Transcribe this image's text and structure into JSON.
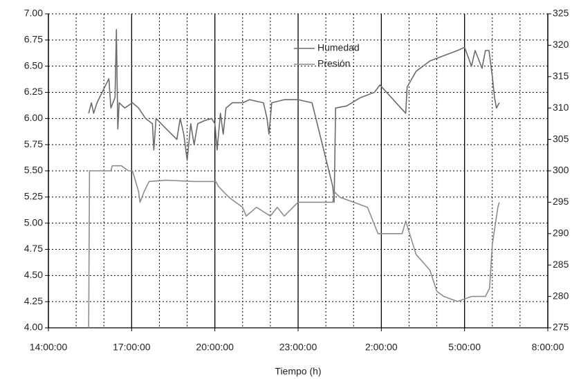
{
  "chart_data": {
    "type": "line",
    "xlabel": "Tiempo (h)",
    "xlim": [
      14,
      32
    ],
    "xticks": [
      {
        "value": 14,
        "label": "14:00:00"
      },
      {
        "value": 17,
        "label": "17:00:00"
      },
      {
        "value": 20,
        "label": "20:00:00"
      },
      {
        "value": 23,
        "label": "23:00:00"
      },
      {
        "value": 26,
        "label": "2:00:00"
      },
      {
        "value": 29,
        "label": "5:00:00"
      },
      {
        "value": 32,
        "label": "8:00:00"
      }
    ],
    "xminorticks": [
      15,
      16,
      18,
      19,
      21,
      22,
      24,
      25,
      27,
      28,
      30,
      31
    ],
    "ylim": [
      4,
      7
    ],
    "yticks": [
      {
        "value": 4,
        "label": "4.00"
      },
      {
        "value": 4.25,
        "label": "4.25"
      },
      {
        "value": 4.5,
        "label": "4.50"
      },
      {
        "value": 4.75,
        "label": "4.75"
      },
      {
        "value": 5,
        "label": "5.00"
      },
      {
        "value": 5.25,
        "label": "5.25"
      },
      {
        "value": 5.5,
        "label": "5.50"
      },
      {
        "value": 5.75,
        "label": "5.75"
      },
      {
        "value": 6,
        "label": "6.00"
      },
      {
        "value": 6.25,
        "label": "6.25"
      },
      {
        "value": 6.5,
        "label": "6.50"
      },
      {
        "value": 6.75,
        "label": "6.75"
      },
      {
        "value": 7,
        "label": "7.00"
      }
    ],
    "y2lim": [
      275,
      325
    ],
    "y2ticks": [
      275,
      280,
      285,
      290,
      295,
      300,
      305,
      310,
      315,
      320,
      325
    ],
    "grid": true,
    "legend": "top",
    "series": [
      {
        "name": "Humedad",
        "color": "#6a6a6a",
        "x": [
          15.45,
          15.55,
          15.63,
          15.75,
          16.18,
          16.25,
          16.4,
          16.45,
          16.5,
          16.55,
          16.75,
          17.03,
          17.25,
          17.5,
          17.75,
          17.8,
          17.88,
          18.25,
          18.63,
          18.75,
          18.88,
          19,
          19.13,
          19.25,
          19.38,
          19.63,
          19.88,
          20,
          20.08,
          20.2,
          20.3,
          20.4,
          20.63,
          21,
          21.25,
          21.75,
          21.88,
          21.95,
          22.05,
          22.5,
          23,
          23.5,
          24.25,
          24.3,
          24.35,
          24.75,
          25.25,
          25.75,
          25.95,
          26.88,
          26.93,
          27.25,
          27.75,
          28.25,
          28.75,
          29,
          29.25,
          29.38,
          29.63,
          29.75,
          29.88,
          30,
          30.08,
          30.15,
          30.25
        ],
        "values": [
          6.05,
          6.15,
          6.05,
          6.15,
          6.38,
          6.1,
          6.2,
          6.85,
          5.9,
          6.15,
          6.1,
          6.15,
          6.1,
          6.0,
          5.95,
          5.7,
          6.0,
          5.9,
          5.8,
          6.0,
          5.85,
          5.6,
          5.95,
          5.75,
          5.95,
          5.98,
          6.0,
          5.95,
          5.7,
          6.05,
          5.85,
          6.1,
          6.15,
          6.15,
          6.18,
          6.15,
          6.0,
          5.85,
          6.15,
          6.18,
          6.18,
          6.15,
          5.35,
          5.2,
          6.1,
          6.12,
          6.2,
          6.25,
          6.32,
          6.05,
          6.3,
          6.45,
          6.55,
          6.6,
          6.65,
          6.68,
          6.5,
          6.65,
          6.48,
          6.65,
          6.65,
          6.4,
          6.2,
          6.1,
          6.15
        ]
      },
      {
        "name": "Presión",
        "color": "#8c8c8c",
        "axis": "y2",
        "x": [
          15.45,
          15.48,
          16.25,
          16.3,
          16.63,
          16.88,
          17.03,
          17.25,
          17.3,
          17.45,
          17.63,
          18.25,
          19.25,
          20.03,
          20.13,
          20.5,
          21,
          21.13,
          21.5,
          22,
          22.25,
          22.5,
          23,
          24.25,
          24.3,
          24.5,
          25,
          25.5,
          25.88,
          26.75,
          26.88,
          27.25,
          27.75,
          28,
          28.25,
          28.75,
          29.25,
          29.75,
          29.9,
          30,
          30.2,
          30.25
        ],
        "values": [
          275,
          300,
          300,
          300.8,
          300.8,
          300,
          300,
          296.7,
          295,
          296.7,
          298.3,
          298.5,
          298.3,
          298.3,
          297.5,
          295.8,
          294.2,
          292.8,
          294.2,
          292.8,
          294.2,
          292.8,
          295,
          295,
          296.7,
          295.8,
          295,
          294.2,
          290,
          290,
          292,
          286.7,
          284.2,
          280.8,
          280,
          279.2,
          280,
          280,
          281.3,
          288.3,
          294.2,
          295
        ]
      }
    ]
  }
}
